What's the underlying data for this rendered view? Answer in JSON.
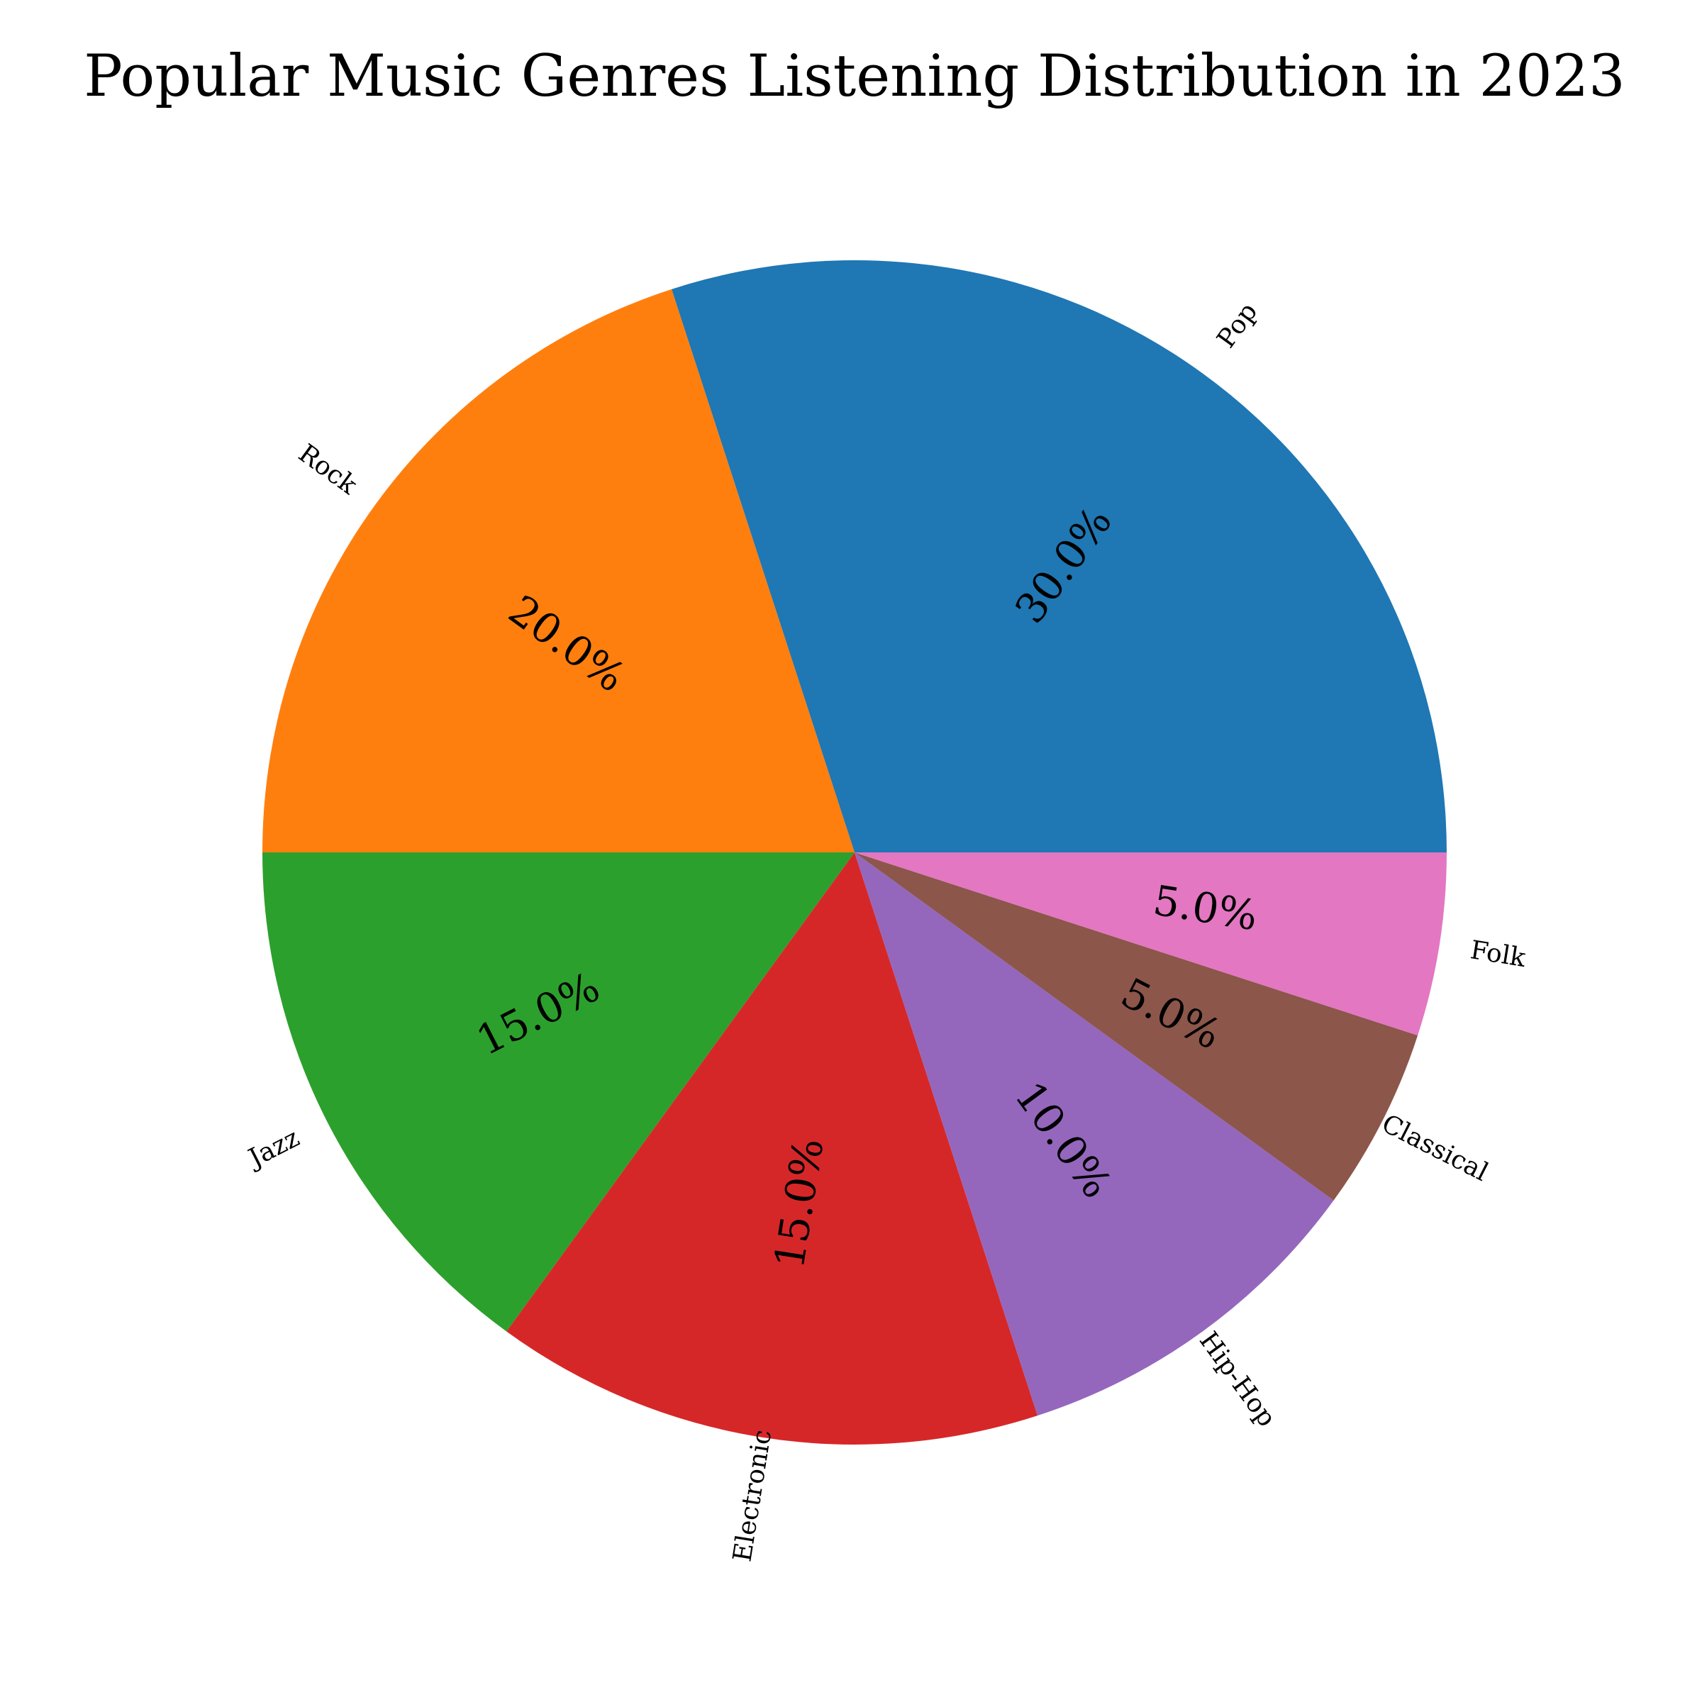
{
  "chart_data": {
    "type": "pie",
    "title": "Popular Music Genres Listening Distribution in 2023",
    "categories": [
      "Pop",
      "Rock",
      "Jazz",
      "Electronic",
      "Hip-Hop",
      "Classical",
      "Folk"
    ],
    "values": [
      30,
      20,
      15,
      15,
      10,
      5,
      5
    ],
    "value_labels": [
      "30.0%",
      "20.0%",
      "15.0%",
      "15.0%",
      "10.0%",
      "5.0%",
      "5.0%"
    ],
    "colors": [
      "#1f77b4",
      "#ff7f0e",
      "#2ca02c",
      "#d62728",
      "#9467bd",
      "#8c564b",
      "#e377c2"
    ],
    "start_angle_deg": 0,
    "direction": "counterclockwise",
    "label_rotation": "radial"
  }
}
